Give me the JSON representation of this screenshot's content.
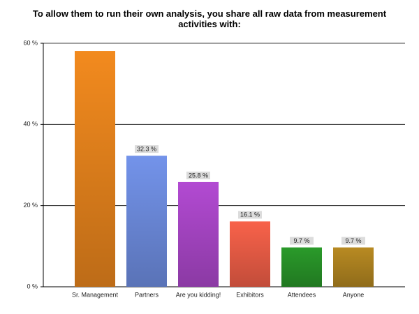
{
  "chart_data": {
    "type": "bar",
    "title": "To allow them to run their own analysis, you share all raw data from measurement activities with:",
    "categories": [
      "Sr. Management",
      "Partners",
      "Are you kidding!",
      "Exhibitors",
      "Attendees",
      "Anyone"
    ],
    "values": [
      58.1,
      32.3,
      25.8,
      16.1,
      9.7,
      9.7
    ],
    "value_labels": [
      null,
      "32.3 %",
      "25.8 %",
      "16.1 %",
      "9.7 %",
      "9.7 %"
    ],
    "colors": [
      "#f28a1e",
      "#7393ea",
      "#b24ad2",
      "#f8624a",
      "#2a9a2a",
      "#b88a22"
    ],
    "ylim": [
      0,
      60
    ],
    "yticks": [
      {
        "value": 0,
        "label": "0 %"
      },
      {
        "value": 20,
        "label": "20 %"
      },
      {
        "value": 40,
        "label": "40 %"
      },
      {
        "value": 60,
        "label": "60 %"
      }
    ],
    "grid": true
  }
}
